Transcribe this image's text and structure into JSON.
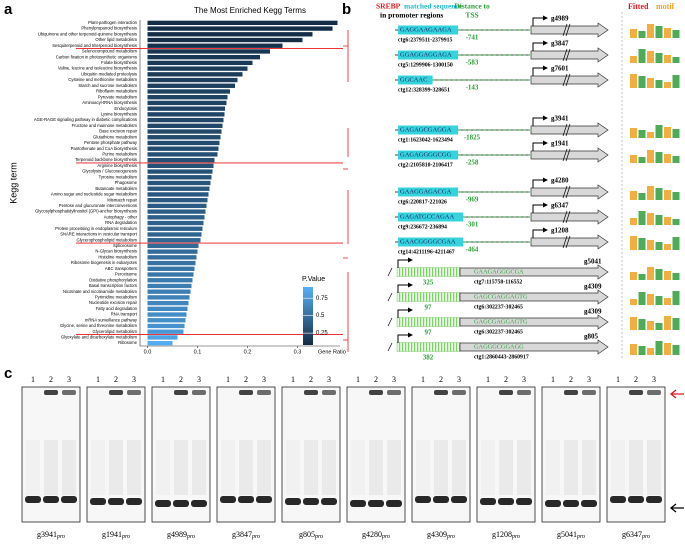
{
  "panels": {
    "a": "a",
    "b": "b",
    "c": "c"
  },
  "chart_data": {
    "type": "bar",
    "orientation": "horizontal",
    "title": "The Most Enriched Kegg Terms",
    "xlabel": "Gene Ratio",
    "ylabel": "Kegg term",
    "categories": [
      "Plant-pathogen interaction",
      "Phenylpropanoid biosynthesis",
      "Ubiquinone and other terpenoid-quinone biosynthesis",
      "Other lipid metabolism",
      "Sesquiterpenoid and triterpenoid biosynthesis",
      "Selenocompound metabolism",
      "Carbon fixation in photosynthetic organisms",
      "Folate biosynthesis",
      "Valine, leucine and isoleucine biosynthesis",
      "Ubiquitin mediated proteolysis",
      "Cysteine and methionine metabolism",
      "Starch and sucrose metabolism",
      "Riboflavin metabolism",
      "Pyruvate metabolism",
      "Aminoacyl-tRNA biosynthesis",
      "Endocytosis",
      "Lysine biosynthesis",
      "AGE-RAGE signaling pathway in diabetic complications",
      "Fructose and mannose metabolism",
      "Base excision repair",
      "Glutathione metabolism",
      "Pentose phosphate pathway",
      "Pantothenate and CoA biosynthesis",
      "Purine metabolism",
      "Terpenoid backbone biosynthesis",
      "Arginine biosynthesis",
      "Glycolysis / Gluconeogenesis",
      "Tyrosine metabolism",
      "Phagosome",
      "Butanoate metabolism",
      "Amino sugar and nucleotide sugar metabolism",
      "Mismatch repair",
      "Pentose and glucuronate interconversions",
      "Glycosylphosphatidylinositol (GPI)-anchor biosynthesis",
      "Autophagy - other",
      "RNA degradation",
      "Protein processing in endoplasmic reticulum",
      "SNARE interactions in vesicular transport",
      "Glycerophospholipid metabolism",
      "Spliceosome",
      "N-Glycan biosynthesis",
      "Histidine metabolism",
      "Ribosome biogenesis in eukaryotes",
      "ABC transporters",
      "Peroxisome",
      "Oxidative phosphorylation",
      "Basal transcription factors",
      "Nicotinate and nicotinamide metabolism",
      "Pyrimidine metabolism",
      "Nucleotide excision repair",
      "Fatty acid degradation",
      "RNA transport",
      "mRNA surveillance pathway",
      "Glycine, serine and threonine metabolism",
      "Glycerolipid metabolism",
      "Glyoxylate and dicarboxylate metabolism",
      "Ribosome"
    ],
    "values": [
      0.38,
      0.37,
      0.33,
      0.31,
      0.27,
      0.245,
      0.225,
      0.21,
      0.2,
      0.19,
      0.18,
      0.175,
      0.165,
      0.16,
      0.158,
      0.155,
      0.154,
      0.152,
      0.15,
      0.148,
      0.146,
      0.144,
      0.142,
      0.14,
      0.134,
      0.132,
      0.13,
      0.128,
      0.126,
      0.124,
      0.122,
      0.12,
      0.118,
      0.116,
      0.114,
      0.112,
      0.11,
      0.108,
      0.106,
      0.102,
      0.1,
      0.098,
      0.096,
      0.094,
      0.092,
      0.09,
      0.088,
      0.086,
      0.084,
      0.082,
      0.08,
      0.078,
      0.076,
      0.074,
      0.072,
      0.06,
      0.05
    ],
    "pvalues": [
      0.1,
      0.1,
      0.1,
      0.1,
      0.12,
      0.15,
      0.15,
      0.17,
      0.18,
      0.18,
      0.2,
      0.2,
      0.22,
      0.22,
      0.23,
      0.23,
      0.24,
      0.25,
      0.25,
      0.26,
      0.27,
      0.28,
      0.28,
      0.3,
      0.3,
      0.31,
      0.32,
      0.33,
      0.34,
      0.35,
      0.36,
      0.37,
      0.38,
      0.39,
      0.4,
      0.41,
      0.42,
      0.43,
      0.45,
      0.47,
      0.48,
      0.5,
      0.52,
      0.54,
      0.55,
      0.57,
      0.59,
      0.6,
      0.62,
      0.64,
      0.66,
      0.68,
      0.7,
      0.72,
      0.75,
      0.82,
      0.88
    ],
    "highlighted": [
      4,
      24,
      38,
      54
    ],
    "highlight_color": "#e8161b",
    "xlim": [
      -0.015,
      0.385
    ],
    "xticks": [
      {
        "value": 0,
        "label": "0.0"
      },
      0.1,
      0.2,
      0.3
    ],
    "colorbar": {
      "title": "P.Value",
      "colors": [
        "#132B43",
        "#56B1F7"
      ],
      "clim": [
        0.08,
        0.91
      ],
      "ticks": [
        0.25,
        0.5,
        0.75
      ]
    }
  },
  "promoter": {
    "header": {
      "srebp": "SREBP",
      "matched": "matched sequence",
      "regions": "in promoter regions",
      "distance": "Distance to",
      "tss": "TSS",
      "fitted": "Fitted",
      "motif": "motif"
    },
    "rows": [
      {
        "seq": "GAGGAAGAAGA",
        "loc": "ctg6:2379511-2379915",
        "dist": -741,
        "gene": "g4989"
      },
      {
        "seq": "GGAGGAGGAGA",
        "loc": "ctg5:1299906-1300150",
        "dist": -583,
        "gene": "g3847"
      },
      {
        "seq": "GGCAAC",
        "loc": "ctg12:328399-328651",
        "dist": -143,
        "gene": "g7601"
      },
      {
        "seq": "GAGAGCGAGGA",
        "loc": "ctg1:1623042-1623494",
        "dist": -1825,
        "gene": "g3941"
      },
      {
        "seq": "GAGAGGGGCGG",
        "loc": "ctg2:2105810-2106417",
        "dist": -258,
        "gene": "g1941"
      },
      {
        "seq": "GAAGGAGACGA",
        "loc": "ctg6:220817-221026",
        "dist": -969,
        "gene": "g4280"
      },
      {
        "seq": "GAGATGCCAGAA",
        "loc": "ctg9:236672-236894",
        "dist": -301,
        "gene": "g6347"
      },
      {
        "seq": "GAACGGGGCGAA",
        "loc": "ctg14:4211196-4211467",
        "dist": -464,
        "gene": "g1208"
      }
    ],
    "body_rows": [
      {
        "offset": 325,
        "seq": "GAAGAGGGCGA",
        "loc": "ctg7:115758-116552",
        "gene": "g5041"
      },
      {
        "offset": 97,
        "seq": "GAGCGAGGAGTG",
        "loc": "ctg6:302237-302465",
        "gene": "g4309"
      },
      {
        "offset": 97,
        "seq": "GAGCGAGGAGTG",
        "loc": "ctg6:302237-302465",
        "gene": "g4309"
      },
      {
        "offset": 382,
        "seq": "GAGGGCGGAGG",
        "loc": "ctg1:2860443-2860917",
        "gene": "g805"
      }
    ]
  },
  "gels": [
    {
      "gene": "g3941",
      "sub": "pro",
      "lanes": [
        "1",
        "2",
        "3"
      ]
    },
    {
      "gene": "g1941",
      "sub": "pro",
      "lanes": [
        "1",
        "2",
        "3"
      ]
    },
    {
      "gene": "g4989",
      "sub": "pro",
      "lanes": [
        "1",
        "2",
        "3"
      ]
    },
    {
      "gene": "g3847",
      "sub": "pro",
      "lanes": [
        "1",
        "2",
        "3"
      ]
    },
    {
      "gene": "g805",
      "sub": "pro",
      "lanes": [
        "1",
        "2",
        "3"
      ]
    },
    {
      "gene": "g4280",
      "sub": "pro",
      "lanes": [
        "1",
        "2",
        "3"
      ]
    },
    {
      "gene": "g4309",
      "sub": "pro",
      "lanes": [
        "1",
        "2",
        "3"
      ]
    },
    {
      "gene": "g1208",
      "sub": "pro",
      "lanes": [
        "1",
        "2",
        "3"
      ]
    },
    {
      "gene": "g5041",
      "sub": "pro",
      "lanes": [
        "1",
        "2",
        "3"
      ]
    },
    {
      "gene": "g6347",
      "sub": "pro",
      "lanes": [
        "1",
        "2",
        "3"
      ]
    }
  ]
}
